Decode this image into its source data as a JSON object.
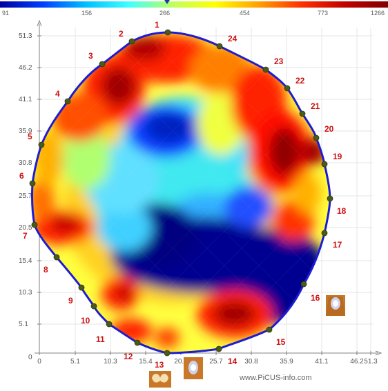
{
  "colorbar": {
    "ticks": [
      "91",
      "156",
      "266",
      "454",
      "773",
      "1266"
    ],
    "stops": [
      "#0000a0",
      "#0040ff",
      "#00c0ff",
      "#40ffff",
      "#c0ff60",
      "#ffff00",
      "#ffa000",
      "#ff3000",
      "#c00000",
      "#800000"
    ]
  },
  "axes": {
    "x_ticks": [
      "0",
      "5.1",
      "10.3",
      "15.4",
      "20.5",
      "25.7",
      "30.8",
      "35.9",
      "41.1",
      "46.2",
      "51.3"
    ],
    "y_ticks": [
      "51.3",
      "46.2",
      "41.1",
      "35.9",
      "30.8",
      "25.7",
      "20.5",
      "15.4",
      "10.3",
      "5.1"
    ],
    "origin_label": "0"
  },
  "sensors": [
    {
      "id": "1"
    },
    {
      "id": "2"
    },
    {
      "id": "3"
    },
    {
      "id": "4"
    },
    {
      "id": "5"
    },
    {
      "id": "6"
    },
    {
      "id": "7"
    },
    {
      "id": "8"
    },
    {
      "id": "9"
    },
    {
      "id": "10"
    },
    {
      "id": "11"
    },
    {
      "id": "12"
    },
    {
      "id": "13"
    },
    {
      "id": "14"
    },
    {
      "id": "15"
    },
    {
      "id": "16"
    },
    {
      "id": "17"
    },
    {
      "id": "18"
    },
    {
      "id": "19"
    },
    {
      "id": "20"
    },
    {
      "id": "21"
    },
    {
      "id": "22"
    },
    {
      "id": "23"
    },
    {
      "id": "24"
    }
  ],
  "colors": {
    "outline": "#1c1cd0",
    "sensor_dot": "#4a5a1a",
    "sensor_label": "#cc1111",
    "axis": "#808080",
    "grid": "#e6e6e6"
  },
  "watermark": "www.PiCUS-info.com"
}
